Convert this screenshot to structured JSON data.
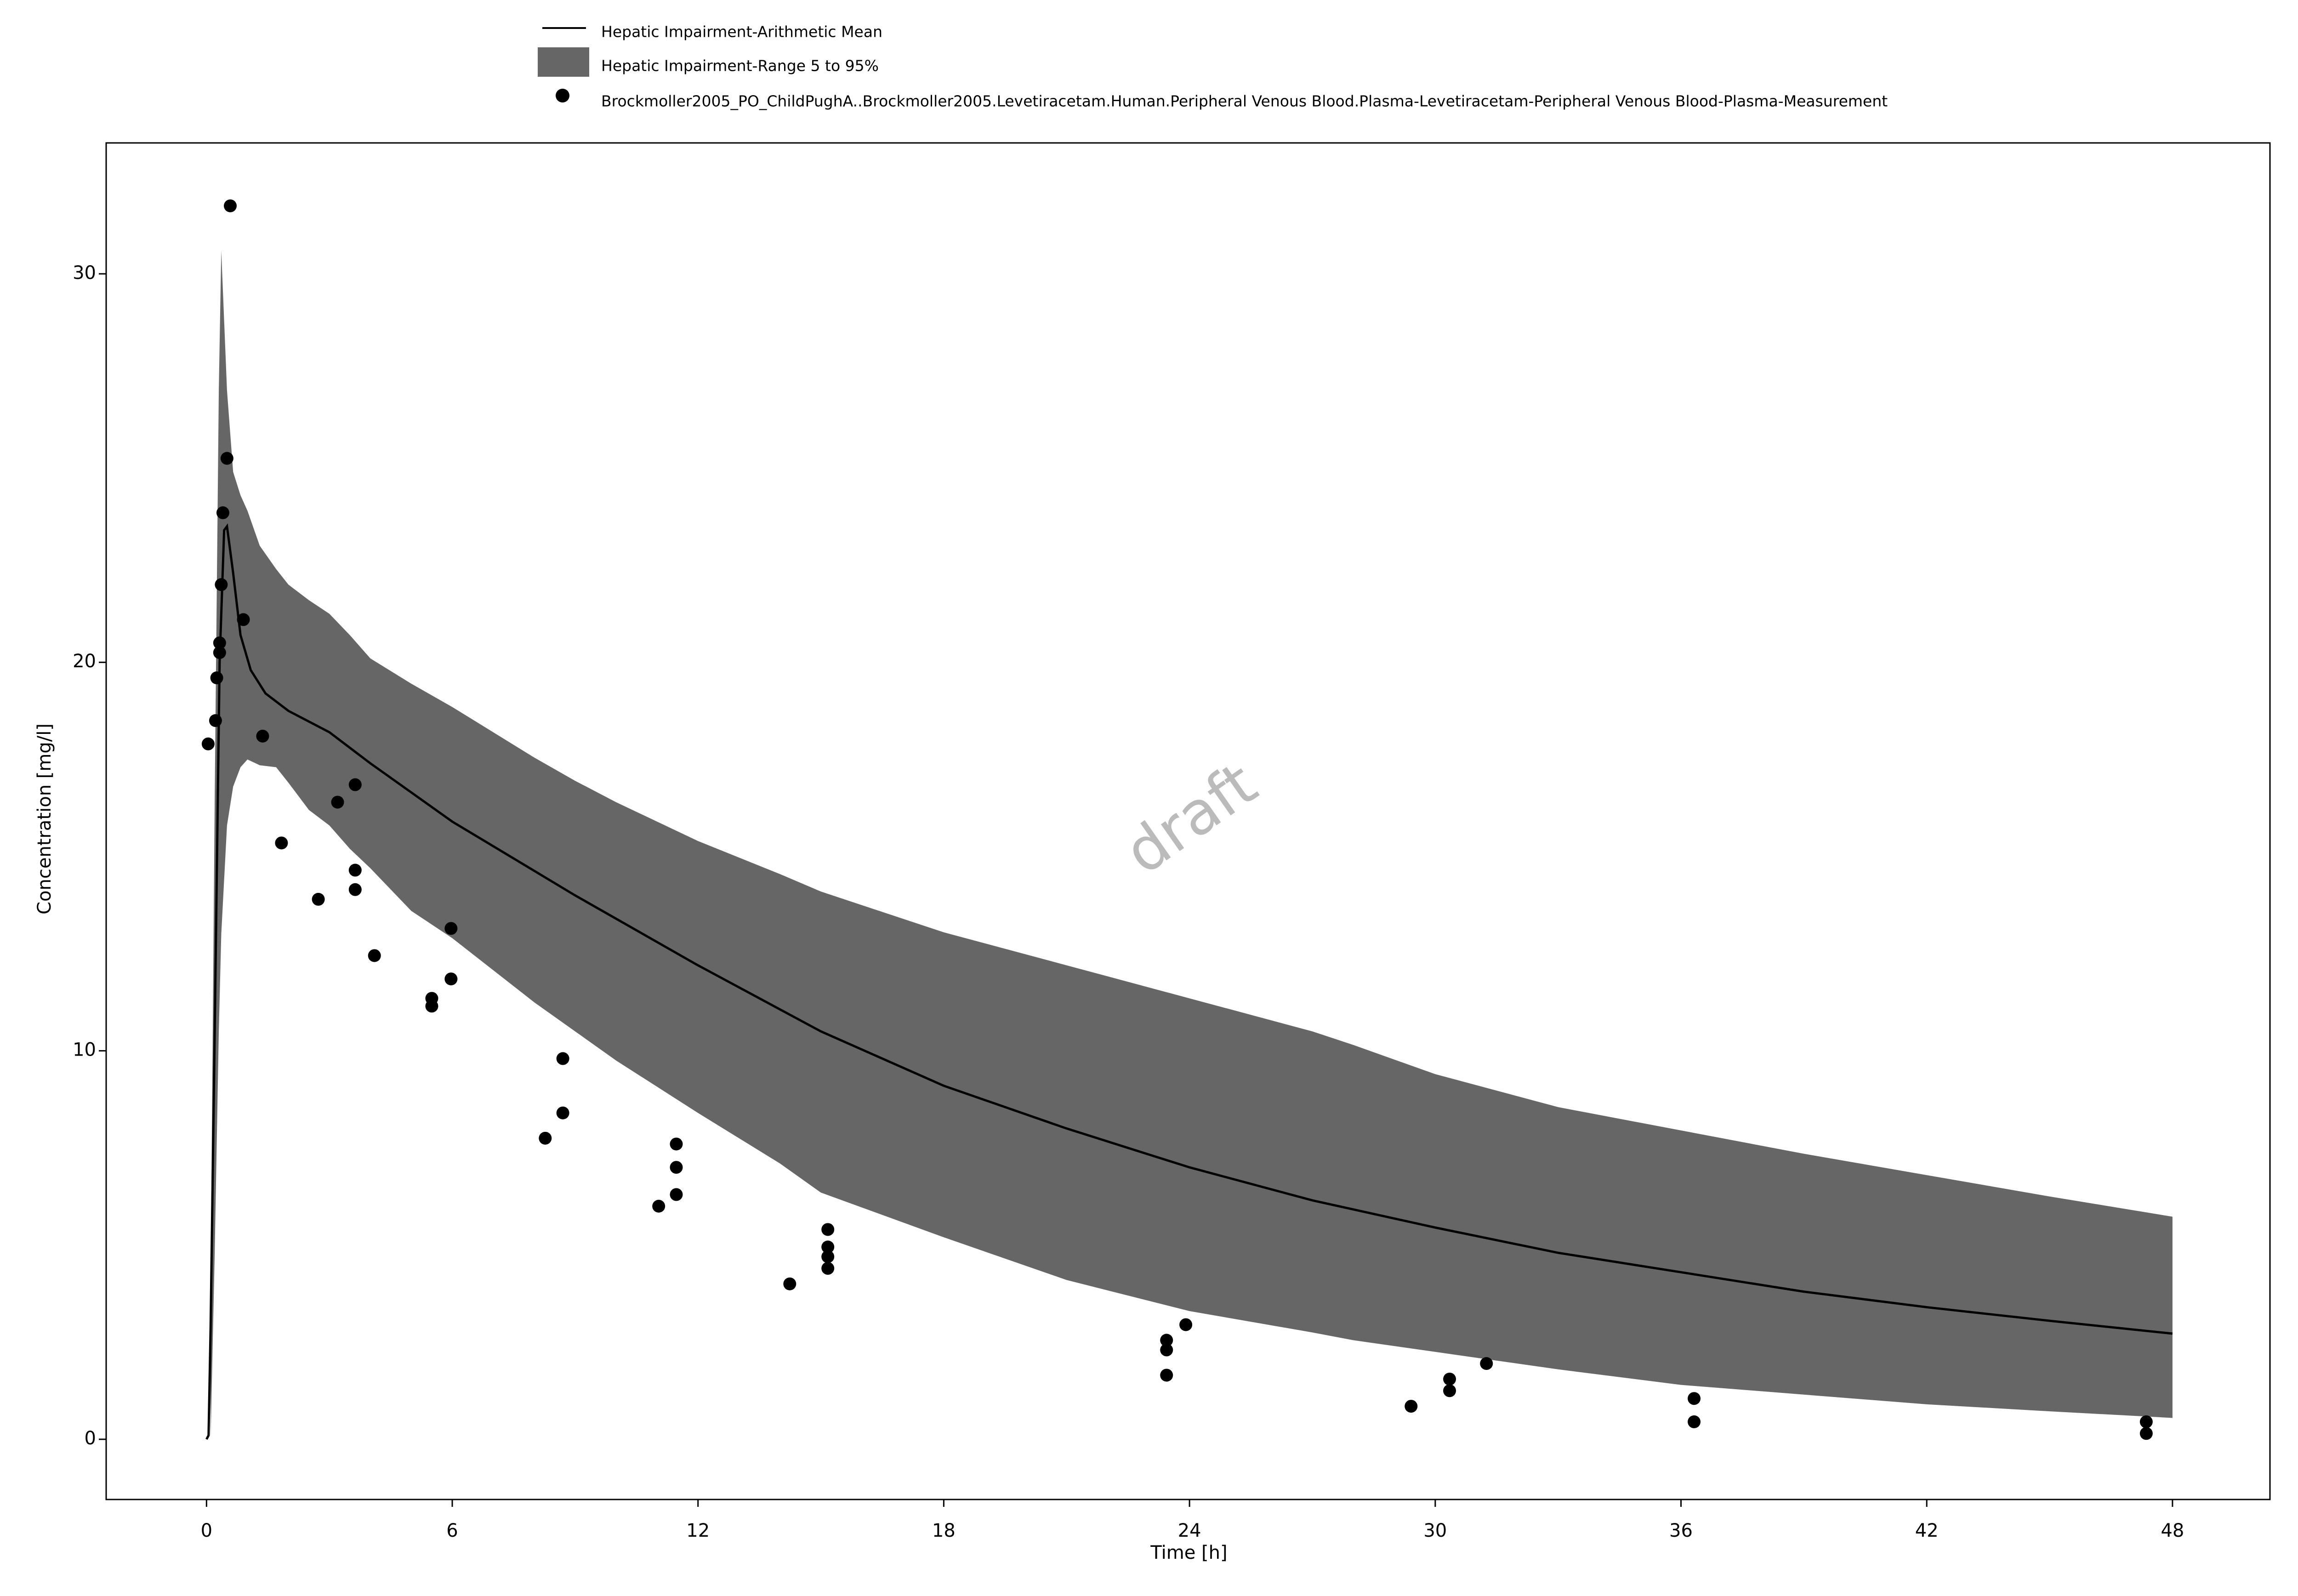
{
  "chart_data": {
    "type": "line",
    "xlabel": "Time [h]",
    "ylabel": "Concentration [mg/l]",
    "annotation": "draft",
    "xlim": [
      -2.45,
      50.38
    ],
    "ylim": [
      -1.55,
      33.37
    ],
    "xticks": [
      0,
      6,
      12,
      18,
      24,
      30,
      36,
      42,
      48
    ],
    "yticks": [
      0,
      10,
      20,
      30
    ],
    "series": [
      {
        "name": "Hepatic Impairment-Arithmetic Mean",
        "kind": "line",
        "color": "#000000",
        "x": [
          0,
          0.05,
          0.1,
          0.2,
          0.32,
          0.43,
          0.5,
          0.65,
          0.83,
          1.08,
          1.44,
          2,
          3,
          4,
          6,
          9,
          12,
          15,
          18,
          21,
          24,
          27,
          30,
          33,
          36,
          39,
          42,
          45,
          48
        ],
        "values": [
          0,
          0.1,
          2.9,
          10.5,
          20,
          23.4,
          23.5,
          22.3,
          20.7,
          19.8,
          19.2,
          18.75,
          18.2,
          17.4,
          15.9,
          14.0,
          12.2,
          10.5,
          9.1,
          8.0,
          7.0,
          6.15,
          5.45,
          4.8,
          4.3,
          3.8,
          3.4,
          3.05,
          2.72
        ]
      },
      {
        "name": "Hepatic Impairment-Range 5 to 95%",
        "kind": "band",
        "color": "#666666",
        "x": [
          0.1,
          0.2,
          0.3,
          0.36,
          0.5,
          0.65,
          0.83,
          1.0,
          1.3,
          1.7,
          2,
          2.5,
          3,
          3.5,
          4,
          5,
          6,
          8,
          9,
          10,
          12,
          14,
          15,
          18,
          21,
          24,
          27,
          28,
          30,
          33,
          36,
          39,
          42,
          45,
          48
        ],
        "lower": [
          0,
          4.8,
          10.5,
          13,
          15.8,
          16.8,
          17.3,
          17.5,
          17.35,
          17.3,
          16.9,
          16.2,
          15.8,
          15.2,
          14.7,
          13.6,
          12.9,
          11.25,
          10.5,
          9.75,
          8.4,
          7.1,
          6.35,
          5.2,
          4.1,
          3.3,
          2.75,
          2.55,
          2.25,
          1.8,
          1.4,
          1.15,
          0.9,
          0.72,
          0.55
        ],
        "upper": [
          4,
          16.5,
          27,
          30.6,
          27,
          24.9,
          24.3,
          23.9,
          23,
          22.4,
          22,
          21.6,
          21.25,
          20.7,
          20.1,
          19.45,
          18.85,
          17.55,
          16.95,
          16.4,
          15.4,
          14.55,
          14.1,
          13.05,
          12.2,
          11.35,
          10.5,
          10.15,
          9.4,
          8.55,
          7.95,
          7.35,
          6.8,
          6.25,
          5.73
        ]
      },
      {
        "name": "Brockmoller2005_PO_ChildPughA..Brockmoller2005.Levetiracetam.Human.Peripheral Venous Blood.Plasma-Levetiracetam-Peripheral Venous Blood-Plasma-Measurement",
        "kind": "scatter",
        "color": "#000000",
        "x": [
          0.04,
          0.22,
          0.25,
          0.32,
          0.32,
          0.36,
          0.4,
          0.5,
          0.58,
          0.9,
          1.37,
          1.83,
          2.73,
          3.2,
          3.63,
          3.63,
          3.63,
          4.1,
          5.5,
          5.5,
          5.97,
          5.97,
          8.27,
          8.7,
          8.7,
          11.04,
          11.47,
          11.47,
          11.47,
          14.24,
          15.17,
          15.17,
          15.17,
          15.17,
          23.44,
          23.44,
          23.44,
          23.91,
          29.41,
          30.35,
          30.35,
          31.25,
          36.32,
          36.32,
          47.36,
          47.36
        ],
        "values": [
          17.9,
          18.5,
          19.6,
          20.25,
          20.5,
          22.0,
          23.85,
          25.25,
          31.75,
          21.1,
          18.1,
          15.35,
          13.9,
          16.4,
          16.85,
          14.65,
          14.15,
          12.45,
          11.35,
          11.15,
          13.15,
          11.85,
          7.75,
          9.8,
          8.4,
          6.0,
          7.6,
          7.0,
          6.3,
          4.0,
          5.4,
          4.95,
          4.7,
          4.4,
          2.55,
          2.3,
          1.65,
          2.95,
          0.85,
          1.55,
          1.25,
          1.95,
          1.05,
          0.45,
          0.45,
          0.15
        ]
      }
    ]
  }
}
